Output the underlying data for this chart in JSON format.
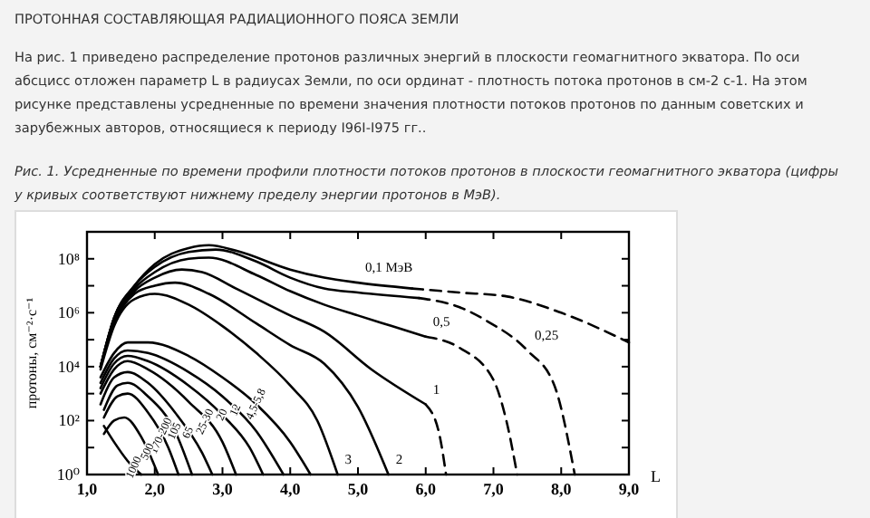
{
  "chart_data": {
    "type": "line",
    "title": "ПРОТОННАЯ СОСТАВЛЯЮЩАЯ РАДИАЦИОННОГО ПОЯСА ЗЕМЛИ",
    "subtitle": "На рис. 1 приведено распределение протонов различных энергий в плоскости геомагнитного экватора. По оси абсцисс отложен параметр L в радиусах Земли, по оси ординат - плотность потока протонов в см-2 с-1. На этом рисунке представлены усредненные по времени значения плотности потоков протонов по данным советских и зарубежных авторов, относящиеся к периоду I96I-I975 гг..",
    "xlabel": "L",
    "ylabel": "протоны, см⁻²·с⁻¹",
    "xlim": [
      1,
      9
    ],
    "xticks": [
      {
        "value": 1,
        "label": "1,0"
      },
      {
        "value": 2,
        "label": "2,0"
      },
      {
        "value": 3,
        "label": "3,0"
      },
      {
        "value": 4,
        "label": "4,0"
      },
      {
        "value": 5,
        "label": "5,0"
      },
      {
        "value": 6,
        "label": "6,0"
      },
      {
        "value": 7,
        "label": "7,0"
      },
      {
        "value": 8,
        "label": "8,0"
      },
      {
        "value": 9,
        "label": "9,0"
      }
    ],
    "ylim": [
      1,
      1000000000.0
    ],
    "yticks": [
      {
        "value": 1,
        "label": "10⁰"
      },
      {
        "value": 10,
        "label": null
      },
      {
        "value": 100,
        "label": "10²"
      },
      {
        "value": 1000,
        "label": null
      },
      {
        "value": 10000,
        "label": "10⁴"
      },
      {
        "value": 100000,
        "label": null
      },
      {
        "value": 1000000,
        "label": "10⁶"
      },
      {
        "value": 10000000,
        "label": null
      },
      {
        "value": 100000000,
        "label": "10⁸"
      },
      {
        "value": 1000000000,
        "label": null
      }
    ],
    "log": "y",
    "grid": false,
    "marker": "none",
    "line_style": "solid",
    "series": [
      {
        "color": "#000000",
        "x": [
          1.2,
          1.4,
          1.7,
          2.0,
          2.5,
          2.8,
          3.2,
          4.0,
          4.5,
          5.0,
          5.8
        ],
        "values": [
          10000.0,
          630000.0,
          10000000.0,
          63000000.0,
          250000000.0,
          320000000.0,
          200000000.0,
          40000000.0,
          20000000.0,
          13000000.0,
          7900000.0
        ]
      },
      {
        "color": "#000000",
        "line_style": "dashed",
        "x": [
          5.8,
          6.5,
          7.2,
          8.0,
          9.0
        ],
        "values": [
          7900000.0,
          5600000.0,
          4000000.0,
          1000000.0,
          79000.0
        ]
      },
      {
        "color": "#000000",
        "x": [
          1.2,
          1.4,
          1.7,
          2.0,
          2.5,
          2.9,
          3.5,
          4.0,
          4.5,
          5.0,
          5.9
        ],
        "values": [
          10000.0,
          630000.0,
          10000000.0,
          50000000.0,
          180000000.0,
          220000000.0,
          79000000.0,
          20000000.0,
          7900000.0,
          5600000.0,
          3500000.0
        ]
      },
      {
        "color": "#000000",
        "line_style": "dashed",
        "x": [
          5.9,
          6.5,
          6.9,
          7.5,
          7.9,
          8.2
        ],
        "values": [
          3500000.0,
          1600000.0,
          500000.0,
          40000.0,
          2000.0,
          1
        ]
      },
      {
        "color": "#000000",
        "x": [
          1.2,
          1.4,
          1.7,
          2.0,
          2.5,
          2.8,
          3.5,
          4.0,
          4.5,
          5.0,
          5.5,
          6.0
        ],
        "values": [
          10000.0,
          630000.0,
          7900000.0,
          32000000.0,
          100000000.0,
          110000000.0,
          25000000.0,
          6300000.0,
          2000000.0,
          790000.0,
          320000.0,
          130000.0
        ]
      },
      {
        "color": "#000000",
        "line_style": "dashed",
        "x": [
          6.0,
          6.5,
          7.0,
          7.2,
          7.35
        ],
        "values": [
          130000.0,
          50000.0,
          3200.0,
          79,
          1
        ]
      },
      {
        "color": "#000000",
        "x": [
          1.2,
          1.4,
          1.7,
          2.0,
          2.4,
          2.7,
          3.2,
          4.0,
          4.5,
          5.2,
          6.0
        ],
        "values": [
          10000.0,
          500000.0,
          6300000.0,
          20000000.0,
          40000000.0,
          32000000.0,
          7900000.0,
          790000.0,
          200000.0,
          7900.0,
          400
        ]
      },
      {
        "color": "#000000",
        "line_style": "dashed",
        "x": [
          6.0,
          6.2,
          6.3
        ],
        "values": [
          400,
          32,
          1
        ]
      },
      {
        "color": "#000000",
        "x": [
          1.2,
          1.4,
          1.7,
          2.0,
          2.3,
          2.8,
          3.5,
          4.0,
          4.5,
          5.0,
          5.45
        ],
        "values": [
          10000.0,
          400000.0,
          5000000.0,
          10000000.0,
          13000000.0,
          5000000.0,
          400000.0,
          63000.0,
          13000.0,
          320,
          1
        ]
      },
      {
        "color": "#000000",
        "x": [
          1.2,
          1.4,
          1.7,
          2.0,
          2.5,
          3.0,
          3.5,
          4.0,
          4.4,
          4.7
        ],
        "values": [
          7900.0,
          320000.0,
          3200000.0,
          5000000.0,
          2000000.0,
          320000.0,
          32000.0,
          2000.0,
          100,
          1
        ]
      },
      {
        "color": "#000000",
        "x": [
          1.2,
          1.4,
          1.6,
          1.9,
          2.5,
          3.0,
          3.5,
          4.0,
          4.3
        ],
        "values": [
          4000.0,
          32000.0,
          79000.0,
          79000.0,
          25000.0,
          4000.0,
          400,
          16,
          1
        ]
      },
      {
        "color": "#000000",
        "x": [
          1.2,
          1.4,
          1.6,
          1.9,
          2.5,
          3.0,
          3.5,
          3.9
        ],
        "values": [
          2500.0,
          20000.0,
          40000.0,
          32000.0,
          6300.0,
          790,
          40,
          1
        ]
      },
      {
        "color": "#000000",
        "x": [
          1.2,
          1.4,
          1.6,
          1.9,
          2.5,
          3.0,
          3.4,
          3.6
        ],
        "values": [
          1600.0,
          13000.0,
          25000.0,
          16000.0,
          2000.0,
          160,
          10,
          1
        ]
      },
      {
        "color": "#000000",
        "x": [
          1.2,
          1.4,
          1.6,
          1.9,
          2.5,
          3.0,
          3.2
        ],
        "values": [
          1000.0,
          7900.0,
          16000.0,
          7900.0,
          500,
          16,
          1
        ]
      },
      {
        "color": "#000000",
        "x": [
          1.2,
          1.4,
          1.6,
          1.9,
          2.3,
          2.7,
          2.85
        ],
        "values": [
          400,
          4000.0,
          6300.0,
          2500.0,
          200,
          6.3,
          1
        ]
      },
      {
        "color": "#000000",
        "x": [
          1.25,
          1.45,
          1.6,
          1.9,
          2.3,
          2.55
        ],
        "values": [
          250,
          2000.0,
          2500.0,
          790,
          40,
          1
        ]
      },
      {
        "color": "#000000",
        "x": [
          1.25,
          1.45,
          1.6,
          1.9,
          2.2,
          2.35
        ],
        "values": [
          130,
          790,
          1000.0,
          200,
          10,
          1
        ]
      },
      {
        "color": "#000000",
        "x": [
          1.25,
          1.4,
          1.55,
          1.8,
          2.05
        ],
        "values": [
          32,
          100,
          130,
          25,
          1
        ]
      },
      {
        "color": "#000000",
        "x": [
          1.25,
          1.4,
          1.6,
          1.8
        ],
        "values": [
          63,
          16,
          3.2,
          1
        ]
      }
    ],
    "annotations": [
      "Рис. 1. Усредненные по времени профили плотности потоков протонов в плоскости геомагнитного экватора (цифры у кривых соответствуют нижнему пределу энергии протонов в МэВ).",
      {
        "text": "0,1 МэВ",
        "x": 5.0,
        "y": 13000000.0
      },
      {
        "text": "0,25",
        "x": 7.5,
        "y": 40000.0
      },
      {
        "text": "0,5",
        "x": 6.0,
        "y": 130000.0
      },
      {
        "text": "1",
        "x": 6.0,
        "y": 400
      },
      {
        "text": "2",
        "x": 5.45,
        "y": 1
      },
      {
        "text": "3",
        "x": 4.7,
        "y": 1
      },
      {
        "text": "4,5-5,8",
        "x": 3.5,
        "y": 400
      },
      {
        "text": "12",
        "x": 3.2,
        "y": 240
      },
      {
        "text": "20",
        "x": 3.0,
        "y": 160
      },
      {
        "text": "25-30",
        "x": 2.75,
        "y": 89
      },
      {
        "text": "65",
        "x": 2.5,
        "y": 35
      },
      {
        "text": "105",
        "x": 2.3,
        "y": 40
      },
      {
        "text": "170-200",
        "x": 2.1,
        "y": 27
      },
      {
        "text": "500",
        "x": 1.9,
        "y": 6.9
      },
      {
        "text": "1000",
        "x": 1.7,
        "y": 1.8
      }
    ]
  }
}
